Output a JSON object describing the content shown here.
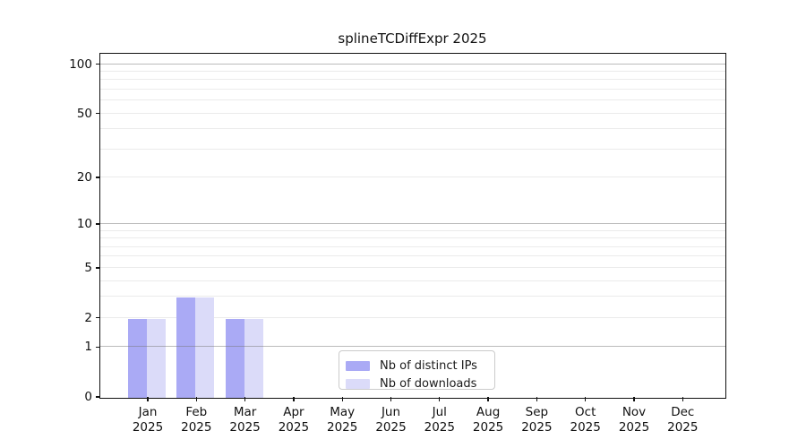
{
  "title": "splineTCDiffExpr 2025",
  "colors": {
    "bar_ips": "#aaaaf5",
    "bar_downloads": "#dbdbf9",
    "grid_minor": "#ebebeb",
    "grid_major_rgba": "rgba(120,120,120,0.50)",
    "axis_line": "#111111",
    "text": "#1a1a1a",
    "legend_border": "#cbcbcb",
    "background": "#ffffff"
  },
  "legend": {
    "items": [
      {
        "label": "Nb of distinct IPs",
        "color": "#aaaaf5"
      },
      {
        "label": "Nb of downloads",
        "color": "#dbdbf9"
      }
    ]
  },
  "chart_data": {
    "type": "bar",
    "title": "splineTCDiffExpr 2025",
    "y_scale": "log1p",
    "categories": [
      "Jan",
      "Feb",
      "Mar",
      "Apr",
      "May",
      "Jun",
      "Jul",
      "Aug",
      "Sep",
      "Oct",
      "Nov",
      "Dec"
    ],
    "year_label": "2025",
    "series": [
      {
        "name": "Nb of distinct IPs",
        "key": "ips",
        "values": [
          2,
          3,
          2,
          0,
          0,
          0,
          0,
          0,
          0,
          0,
          0,
          0
        ]
      },
      {
        "name": "Nb of downloads",
        "key": "downloads",
        "values": [
          2,
          3,
          2,
          0,
          0,
          0,
          0,
          0,
          0,
          0,
          0,
          0
        ]
      }
    ],
    "y_ticks": [
      0,
      1,
      2,
      5,
      10,
      20,
      50,
      100
    ],
    "y_minor_gridlines": [
      2,
      3,
      4,
      5,
      6,
      7,
      8,
      9,
      20,
      30,
      40,
      50,
      60,
      70,
      80,
      90
    ],
    "y_major_gridlines": [
      1,
      10,
      100
    ],
    "ylim": [
      0,
      114.3
    ],
    "grid": true,
    "legend_position": "bottom-center"
  }
}
